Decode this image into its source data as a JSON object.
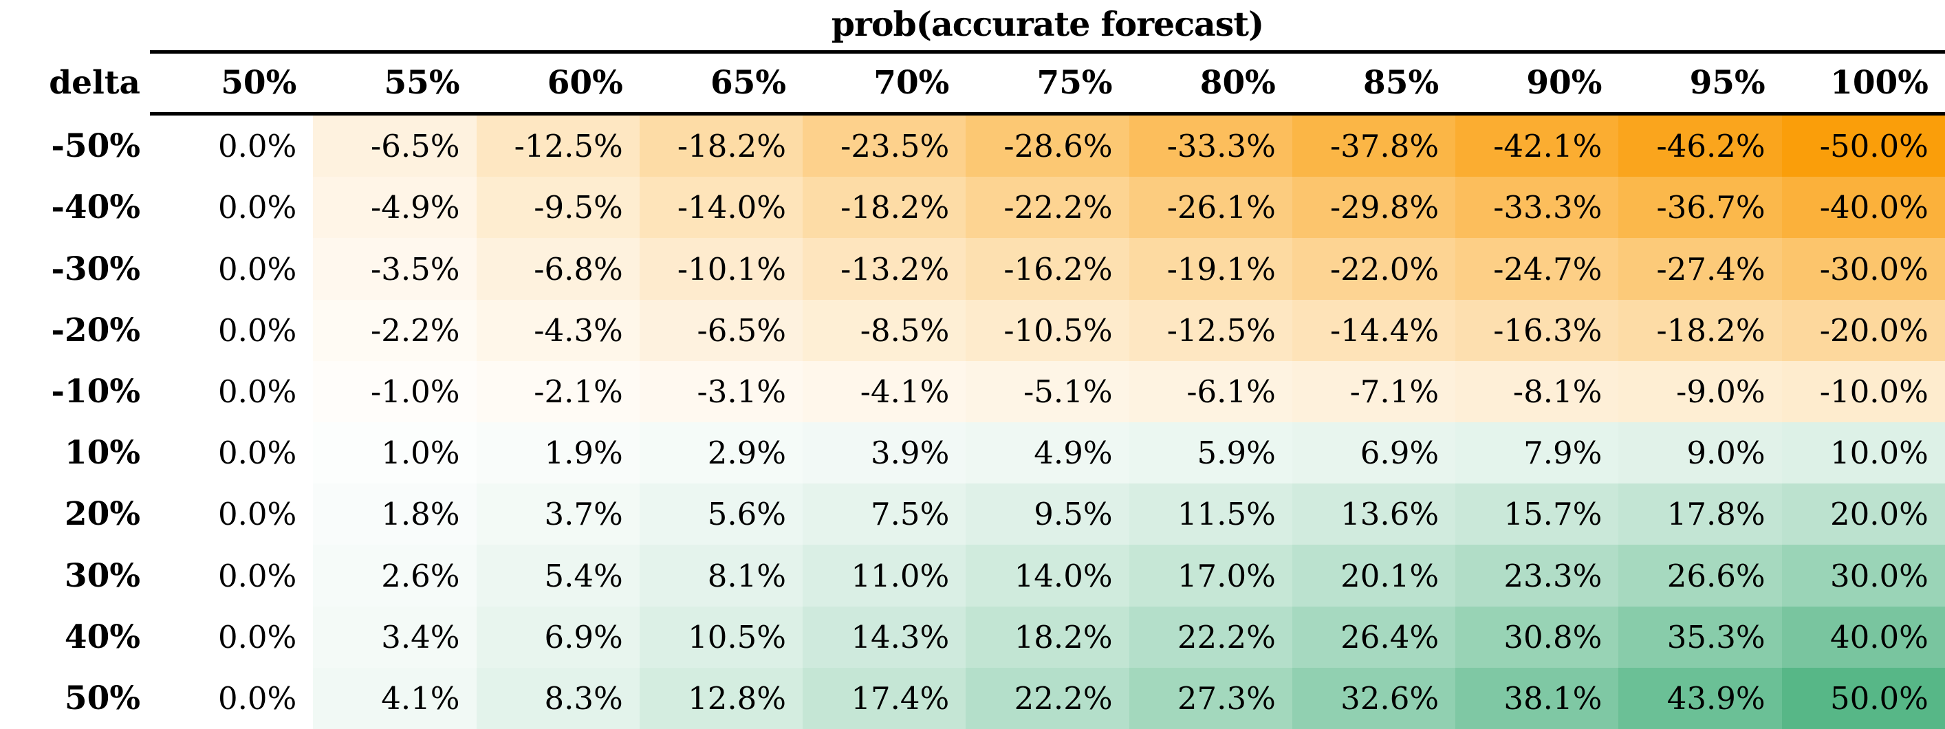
{
  "chart_data": {
    "type": "heatmap",
    "title": "prob(accurate forecast)",
    "rows_axis_label": "delta",
    "columns": [
      "50%",
      "55%",
      "60%",
      "65%",
      "70%",
      "75%",
      "80%",
      "85%",
      "90%",
      "95%",
      "100%"
    ],
    "rows": [
      "-50%",
      "-40%",
      "-30%",
      "-20%",
      "-10%",
      "10%",
      "20%",
      "30%",
      "40%",
      "50%"
    ],
    "values": [
      [
        0.0,
        -6.5,
        -12.5,
        -18.2,
        -23.5,
        -28.6,
        -33.3,
        -37.8,
        -42.1,
        -46.2,
        -50.0
      ],
      [
        0.0,
        -4.9,
        -9.5,
        -14.0,
        -18.2,
        -22.2,
        -26.1,
        -29.8,
        -33.3,
        -36.7,
        -40.0
      ],
      [
        0.0,
        -3.5,
        -6.8,
        -10.1,
        -13.2,
        -16.2,
        -19.1,
        -22.0,
        -24.7,
        -27.4,
        -30.0
      ],
      [
        0.0,
        -2.2,
        -4.3,
        -6.5,
        -8.5,
        -10.5,
        -12.5,
        -14.4,
        -16.3,
        -18.2,
        -20.0
      ],
      [
        0.0,
        -1.0,
        -2.1,
        -3.1,
        -4.1,
        -5.1,
        -6.1,
        -7.1,
        -8.1,
        -9.0,
        -10.0
      ],
      [
        0.0,
        1.0,
        1.9,
        2.9,
        3.9,
        4.9,
        5.9,
        6.9,
        7.9,
        9.0,
        10.0
      ],
      [
        0.0,
        1.8,
        3.7,
        5.6,
        7.5,
        9.5,
        11.5,
        13.6,
        15.7,
        17.8,
        20.0
      ],
      [
        0.0,
        2.6,
        5.4,
        8.1,
        11.0,
        14.0,
        17.0,
        20.1,
        23.3,
        26.6,
        30.0
      ],
      [
        0.0,
        3.4,
        6.9,
        10.5,
        14.3,
        18.2,
        22.2,
        26.4,
        30.8,
        35.3,
        40.0
      ],
      [
        0.0,
        4.1,
        8.3,
        12.8,
        17.4,
        22.2,
        27.3,
        32.6,
        38.1,
        43.9,
        50.0
      ]
    ],
    "value_format": "percent_one_decimal",
    "colors": {
      "negative_max": "#FA9E0A",
      "positive_max": "#57B787",
      "zero": "#FFFFFF",
      "text": "#000000",
      "border": "#000000",
      "scale_abs_max": 50
    },
    "grid": false,
    "legend": "none"
  }
}
